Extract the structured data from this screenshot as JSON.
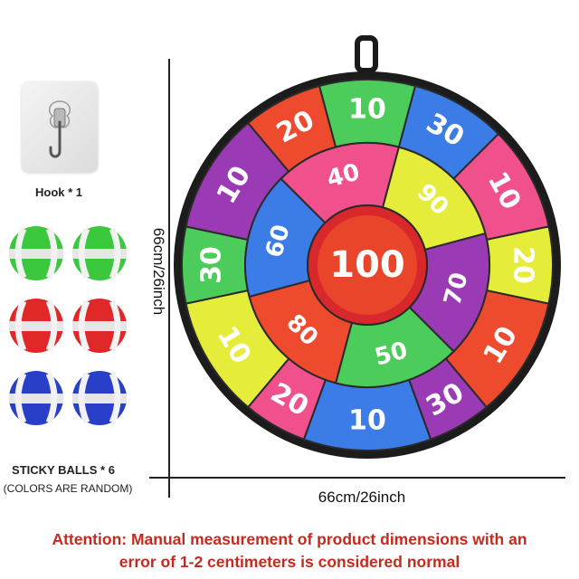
{
  "accessories": {
    "hook_label": "Hook * 1",
    "balls_label": "STICKY BALLS * 6",
    "balls_note": "(COLORS ARE RANDOM)",
    "ball_colors": [
      "#3cc83c",
      "#e02828",
      "#2a3fc8"
    ]
  },
  "dimensions": {
    "height": "66cm/26inch",
    "width": "66cm/26inch"
  },
  "notice": {
    "line1": "Attention: Manual measurement of product dimensions with an",
    "line2": "error of 1-2 centimeters is considered normal"
  },
  "dartboard": {
    "center": {
      "value": "100",
      "color": "#e8452a"
    },
    "middle_ring": [
      {
        "value": "40",
        "color": "#f0508c"
      },
      {
        "value": "90",
        "color": "#e6ec3a"
      },
      {
        "value": "70",
        "color": "#9a3ab4"
      },
      {
        "value": "50",
        "color": "#4ccc5a"
      },
      {
        "value": "80",
        "color": "#ee4a2e"
      },
      {
        "value": "60",
        "color": "#3c7ce6"
      }
    ],
    "outer_ring": [
      {
        "value": "10",
        "color": "#4ccc5a"
      },
      {
        "value": "30",
        "color": "#3c7ce6"
      },
      {
        "value": "10",
        "color": "#f0508c"
      },
      {
        "value": "20",
        "color": "#e6ec3a"
      },
      {
        "value": "10",
        "color": "#ee4a2e"
      },
      {
        "value": "30",
        "color": "#9a3ab4"
      },
      {
        "value": "10",
        "color": "#3c7ce6"
      },
      {
        "value": "20",
        "color": "#f0508c"
      },
      {
        "value": "10",
        "color": "#e6ec3a"
      },
      {
        "value": "30",
        "color": "#4ccc5a"
      },
      {
        "value": "10",
        "color": "#9a3ab4"
      },
      {
        "value": "20",
        "color": "#ee4a2e"
      }
    ]
  }
}
